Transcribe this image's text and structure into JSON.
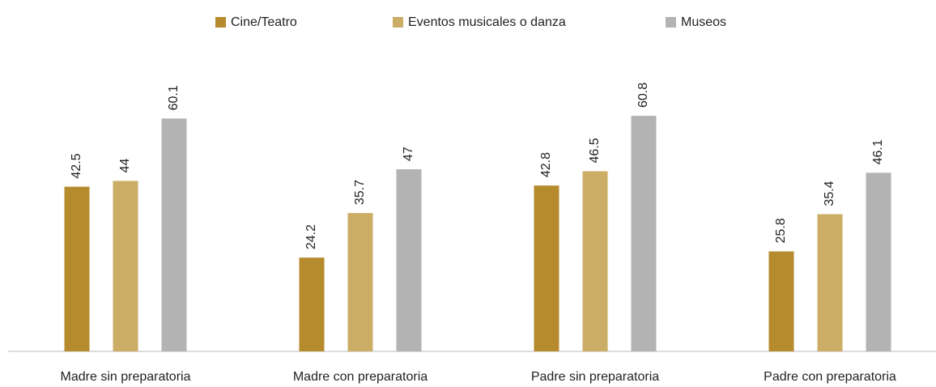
{
  "chart_data": {
    "type": "bar",
    "categories": [
      "Madre sin preparatoria",
      "Madre con preparatoria",
      "Padre sin preparatoria",
      "Padre con preparatoria"
    ],
    "series": [
      {
        "name": "Cine/Teatro",
        "color": "#b58b2e",
        "values": [
          42.5,
          24.2,
          42.8,
          25.8
        ]
      },
      {
        "name": "Eventos musicales o danza",
        "color": "#cbad66",
        "values": [
          44,
          35.7,
          46.5,
          35.4
        ]
      },
      {
        "name": "Museos",
        "color": "#b3b3b3",
        "values": [
          60.1,
          47,
          60.8,
          46.1
        ]
      }
    ],
    "ylim": [
      0,
      70
    ],
    "legend": "top"
  }
}
